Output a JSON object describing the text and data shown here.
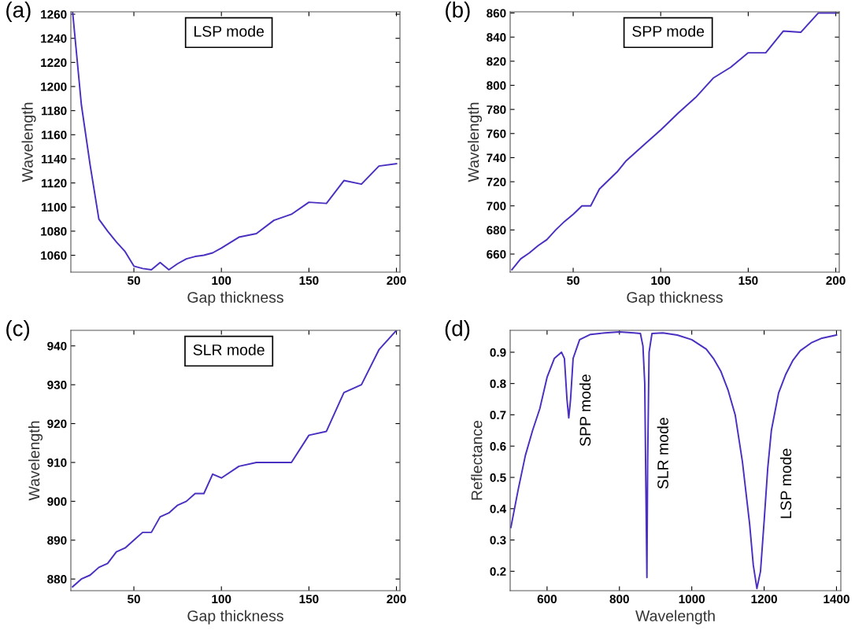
{
  "chart_data": [
    {
      "type": "line",
      "title": "(a)",
      "xlabel": "Gap thickness",
      "ylabel": "Wavelength",
      "annotations": [
        "LSP mode"
      ],
      "xlim": [
        14,
        202
      ],
      "xticks": [
        50,
        100,
        150,
        200
      ],
      "ylim": [
        1046,
        1262
      ],
      "yticks": [
        1060,
        1080,
        1100,
        1120,
        1140,
        1160,
        1180,
        1200,
        1220,
        1240,
        1260
      ],
      "x": [
        15,
        20,
        25,
        30,
        35,
        40,
        45,
        50,
        55,
        60,
        65,
        70,
        75,
        80,
        85,
        90,
        95,
        100,
        110,
        120,
        130,
        140,
        150,
        160,
        170,
        180,
        190,
        200
      ],
      "series": [
        {
          "color": "#4a2fc0",
          "values": [
            1262,
            1185,
            1135,
            1090,
            1080,
            1071,
            1063,
            1051,
            1049,
            1048,
            1054,
            1048,
            1053,
            1057,
            1059,
            1060,
            1062,
            1066,
            1075,
            1078,
            1089,
            1094,
            1104,
            1103,
            1122,
            1119,
            1134,
            1136
          ]
        }
      ]
    },
    {
      "type": "line",
      "title": "(b)",
      "xlabel": "Gap thickness",
      "ylabel": "Wavelength",
      "annotations": [
        "SPP mode"
      ],
      "xlim": [
        14,
        202
      ],
      "xticks": [
        50,
        100,
        150,
        200
      ],
      "ylim": [
        645,
        861
      ],
      "yticks": [
        660,
        680,
        700,
        720,
        740,
        760,
        780,
        800,
        820,
        840,
        860
      ],
      "x": [
        15,
        20,
        25,
        30,
        35,
        40,
        45,
        50,
        55,
        60,
        65,
        70,
        75,
        80,
        90,
        100,
        110,
        120,
        130,
        140,
        150,
        160,
        170,
        180,
        190,
        200
      ],
      "series": [
        {
          "color": "#4a2fc0",
          "values": [
            647,
            656,
            661,
            667,
            672,
            680,
            687,
            693,
            700,
            700,
            714,
            721,
            728,
            737,
            750,
            763,
            777,
            790,
            806,
            815,
            827,
            827,
            845,
            844,
            860,
            860
          ]
        }
      ]
    },
    {
      "type": "line",
      "title": "(c)",
      "xlabel": "Gap thickness",
      "ylabel": "Wavelength",
      "annotations": [
        "SLR mode"
      ],
      "xlim": [
        14,
        202
      ],
      "xticks": [
        50,
        100,
        150,
        200
      ],
      "ylim": [
        877,
        944
      ],
      "yticks": [
        880,
        890,
        900,
        910,
        920,
        930,
        940
      ],
      "x": [
        15,
        20,
        25,
        30,
        35,
        40,
        45,
        50,
        55,
        60,
        65,
        70,
        75,
        80,
        85,
        90,
        95,
        100,
        110,
        120,
        140,
        150,
        160,
        170,
        180,
        190,
        200
      ],
      "series": [
        {
          "color": "#4a2fc0",
          "values": [
            878,
            880,
            881,
            883,
            884,
            887,
            888,
            890,
            892,
            892,
            896,
            897,
            899,
            900,
            902,
            902,
            907,
            906,
            909,
            910,
            910,
            917,
            918,
            928,
            930,
            939,
            944
          ]
        }
      ]
    },
    {
      "type": "line",
      "title": "(d)",
      "xlabel": "Wavelength",
      "ylabel": "Reflectance",
      "annotations": [
        "SPP mode",
        "SLR mode",
        "LSP mode"
      ],
      "xlim": [
        498,
        1412
      ],
      "xticks": [
        600,
        800,
        1000,
        1200,
        1400
      ],
      "ylim": [
        0.138,
        0.97
      ],
      "yticks": [
        0.2,
        0.3,
        0.4,
        0.5,
        0.6,
        0.7,
        0.8,
        0.9
      ],
      "x": [
        500,
        520,
        540,
        560,
        580,
        600,
        620,
        640,
        648,
        655,
        660,
        665,
        672,
        690,
        720,
        760,
        800,
        840,
        858,
        865,
        870,
        873,
        876,
        878,
        882,
        890,
        920,
        960,
        1000,
        1040,
        1060,
        1080,
        1100,
        1120,
        1140,
        1160,
        1170,
        1180,
        1190,
        1200,
        1210,
        1220,
        1240,
        1260,
        1280,
        1300,
        1330,
        1360,
        1400
      ],
      "series": [
        {
          "color": "#4a2fc0",
          "values": [
            0.34,
            0.46,
            0.57,
            0.65,
            0.72,
            0.82,
            0.88,
            0.9,
            0.88,
            0.75,
            0.69,
            0.75,
            0.88,
            0.94,
            0.957,
            0.962,
            0.965,
            0.962,
            0.96,
            0.92,
            0.8,
            0.48,
            0.18,
            0.55,
            0.9,
            0.96,
            0.962,
            0.955,
            0.94,
            0.91,
            0.88,
            0.84,
            0.78,
            0.7,
            0.55,
            0.35,
            0.22,
            0.145,
            0.2,
            0.36,
            0.53,
            0.65,
            0.77,
            0.83,
            0.875,
            0.905,
            0.93,
            0.945,
            0.955
          ]
        }
      ]
    }
  ]
}
